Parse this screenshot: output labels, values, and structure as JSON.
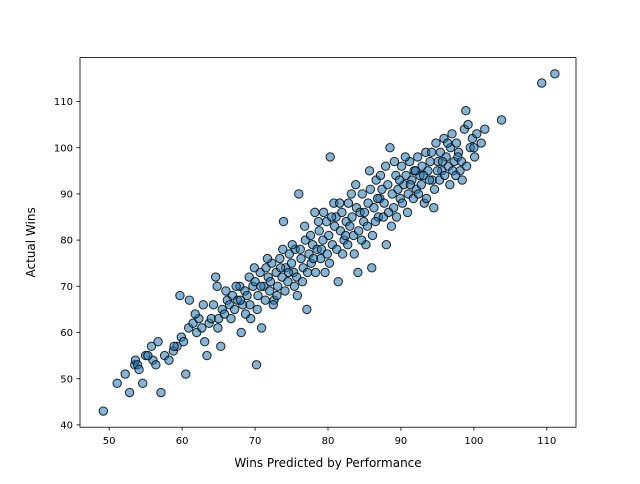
{
  "chart_data": {
    "type": "scatter",
    "title": "",
    "xlabel": "Wins Predicted by Performance",
    "ylabel": "Actual Wins",
    "xlim": [
      46,
      114
    ],
    "ylim": [
      39.5,
      119.5
    ],
    "xticks": [
      50,
      60,
      70,
      80,
      90,
      100,
      110
    ],
    "yticks": [
      40,
      50,
      60,
      70,
      80,
      90,
      100,
      110
    ],
    "grid": false,
    "legend": "none",
    "marker_color": "#1f77b4",
    "marker_edge_color": "#000000",
    "marker_alpha": 0.55,
    "points": [
      [
        49.2,
        43
      ],
      [
        51.1,
        49
      ],
      [
        52.2,
        51
      ],
      [
        52.8,
        47
      ],
      [
        53.5,
        53
      ],
      [
        53.6,
        54
      ],
      [
        53.9,
        53
      ],
      [
        54.1,
        52
      ],
      [
        54.6,
        49
      ],
      [
        55.0,
        55
      ],
      [
        55.8,
        57
      ],
      [
        56.0,
        54
      ],
      [
        56.4,
        53
      ],
      [
        56.7,
        58
      ],
      [
        57.1,
        47
      ],
      [
        57.6,
        55
      ],
      [
        58.2,
        54
      ],
      [
        58.8,
        56
      ],
      [
        59.3,
        57
      ],
      [
        59.7,
        68
      ],
      [
        59.9,
        59
      ],
      [
        60.2,
        58
      ],
      [
        60.5,
        51
      ],
      [
        60.9,
        61
      ],
      [
        61.0,
        67
      ],
      [
        61.5,
        62
      ],
      [
        62.0,
        60
      ],
      [
        62.3,
        63
      ],
      [
        62.9,
        66
      ],
      [
        63.4,
        55
      ],
      [
        63.7,
        62
      ],
      [
        64.0,
        63
      ],
      [
        64.3,
        66
      ],
      [
        64.6,
        72
      ],
      [
        64.8,
        70
      ],
      [
        65.0,
        63
      ],
      [
        65.3,
        57
      ],
      [
        65.5,
        65
      ],
      [
        65.8,
        64
      ],
      [
        66.2,
        67
      ],
      [
        66.5,
        66
      ],
      [
        66.9,
        68
      ],
      [
        67.2,
        65
      ],
      [
        67.6,
        67
      ],
      [
        67.9,
        70
      ],
      [
        68.1,
        60
      ],
      [
        68.3,
        66
      ],
      [
        68.6,
        69
      ],
      [
        68.9,
        68
      ],
      [
        69.2,
        72
      ],
      [
        69.4,
        63
      ],
      [
        69.7,
        70
      ],
      [
        70.0,
        71
      ],
      [
        70.2,
        53
      ],
      [
        70.4,
        68
      ],
      [
        70.7,
        73
      ],
      [
        70.9,
        61
      ],
      [
        71.2,
        70
      ],
      [
        71.5,
        74
      ],
      [
        71.8,
        72
      ],
      [
        72.0,
        69
      ],
      [
        72.3,
        75
      ],
      [
        72.6,
        67
      ],
      [
        72.9,
        73
      ],
      [
        73.1,
        70
      ],
      [
        73.4,
        76
      ],
      [
        73.7,
        72
      ],
      [
        73.9,
        84
      ],
      [
        74.2,
        74
      ],
      [
        74.5,
        71
      ],
      [
        74.7,
        77
      ],
      [
        75.0,
        75
      ],
      [
        75.3,
        73
      ],
      [
        75.5,
        78
      ],
      [
        75.8,
        68
      ],
      [
        76.0,
        90
      ],
      [
        76.3,
        76
      ],
      [
        76.6,
        74
      ],
      [
        76.9,
        80
      ],
      [
        77.1,
        65
      ],
      [
        77.4,
        77
      ],
      [
        77.7,
        75
      ],
      [
        77.9,
        79
      ],
      [
        78.2,
        86
      ],
      [
        78.5,
        78
      ],
      [
        78.8,
        82
      ],
      [
        79.0,
        76
      ],
      [
        79.3,
        80
      ],
      [
        79.6,
        73
      ],
      [
        79.8,
        84
      ],
      [
        80.1,
        81
      ],
      [
        80.3,
        98
      ],
      [
        80.6,
        79
      ],
      [
        80.9,
        83
      ],
      [
        81.1,
        85
      ],
      [
        81.4,
        71
      ],
      [
        81.7,
        82
      ],
      [
        81.9,
        86
      ],
      [
        82.2,
        80
      ],
      [
        82.5,
        84
      ],
      [
        82.8,
        88
      ],
      [
        83.0,
        83
      ],
      [
        83.3,
        85
      ],
      [
        83.6,
        77
      ],
      [
        83.9,
        87
      ],
      [
        84.1,
        73
      ],
      [
        84.4,
        86
      ],
      [
        84.7,
        90
      ],
      [
        84.9,
        84
      ],
      [
        85.2,
        79
      ],
      [
        85.5,
        88
      ],
      [
        85.8,
        91
      ],
      [
        86.0,
        74
      ],
      [
        86.3,
        87
      ],
      [
        86.6,
        93
      ],
      [
        86.9,
        85
      ],
      [
        87.1,
        89
      ],
      [
        87.4,
        91
      ],
      [
        87.7,
        88
      ],
      [
        88.0,
        79
      ],
      [
        88.2,
        92
      ],
      [
        88.5,
        100
      ],
      [
        88.8,
        90
      ],
      [
        89.0,
        87
      ],
      [
        89.3,
        94
      ],
      [
        89.6,
        91
      ],
      [
        89.9,
        89
      ],
      [
        90.1,
        96
      ],
      [
        90.4,
        92
      ],
      [
        90.7,
        94
      ],
      [
        91.0,
        90
      ],
      [
        91.2,
        97
      ],
      [
        91.5,
        93
      ],
      [
        91.8,
        95
      ],
      [
        92.1,
        91
      ],
      [
        92.3,
        98
      ],
      [
        92.6,
        94
      ],
      [
        92.9,
        96
      ],
      [
        93.2,
        88
      ],
      [
        93.4,
        99
      ],
      [
        93.7,
        95
      ],
      [
        94.0,
        97
      ],
      [
        94.3,
        93
      ],
      [
        94.5,
        87
      ],
      [
        94.8,
        101
      ],
      [
        95.1,
        97
      ],
      [
        95.4,
        99
      ],
      [
        95.6,
        95
      ],
      [
        95.9,
        102
      ],
      [
        96.2,
        98
      ],
      [
        96.5,
        96
      ],
      [
        96.8,
        100
      ],
      [
        97.0,
        103
      ],
      [
        97.3,
        97
      ],
      [
        97.6,
        101
      ],
      [
        97.9,
        99
      ],
      [
        98.1,
        95
      ],
      [
        98.4,
        93
      ],
      [
        98.7,
        104
      ],
      [
        98.9,
        108
      ],
      [
        99.2,
        105
      ],
      [
        99.5,
        100
      ],
      [
        99.8,
        102
      ],
      [
        100.1,
        98
      ],
      [
        100.4,
        103
      ],
      [
        101.0,
        101
      ],
      [
        101.5,
        104
      ],
      [
        103.8,
        106
      ],
      [
        109.3,
        114
      ],
      [
        111.1,
        116
      ],
      [
        55.3,
        55
      ],
      [
        58.9,
        57
      ],
      [
        61.8,
        64
      ],
      [
        62.7,
        61
      ],
      [
        63.1,
        58
      ],
      [
        64.9,
        61
      ],
      [
        66.0,
        69
      ],
      [
        66.7,
        63
      ],
      [
        67.4,
        70
      ],
      [
        68.0,
        67
      ],
      [
        68.7,
        64
      ],
      [
        69.3,
        66
      ],
      [
        69.9,
        74
      ],
      [
        70.3,
        65
      ],
      [
        70.8,
        70
      ],
      [
        71.4,
        67
      ],
      [
        71.7,
        76
      ],
      [
        72.1,
        71
      ],
      [
        72.5,
        66
      ],
      [
        73.0,
        68
      ],
      [
        73.5,
        74
      ],
      [
        73.8,
        78
      ],
      [
        74.1,
        69
      ],
      [
        74.6,
        73
      ],
      [
        75.1,
        79
      ],
      [
        75.4,
        70
      ],
      [
        75.7,
        72
      ],
      [
        76.2,
        78
      ],
      [
        76.5,
        71
      ],
      [
        76.8,
        83
      ],
      [
        77.2,
        73
      ],
      [
        77.6,
        81
      ],
      [
        78.0,
        76
      ],
      [
        78.3,
        73
      ],
      [
        78.7,
        84
      ],
      [
        79.1,
        78
      ],
      [
        79.4,
        86
      ],
      [
        79.9,
        77
      ],
      [
        80.2,
        75
      ],
      [
        80.5,
        85
      ],
      [
        80.8,
        88
      ],
      [
        81.2,
        78
      ],
      [
        81.6,
        88
      ],
      [
        82.0,
        77
      ],
      [
        82.4,
        81
      ],
      [
        82.7,
        79
      ],
      [
        83.2,
        90
      ],
      [
        83.5,
        81
      ],
      [
        83.8,
        92
      ],
      [
        84.2,
        82
      ],
      [
        84.6,
        80
      ],
      [
        85.0,
        86
      ],
      [
        85.4,
        83
      ],
      [
        85.7,
        95
      ],
      [
        86.1,
        81
      ],
      [
        86.5,
        84
      ],
      [
        86.8,
        89
      ],
      [
        87.2,
        94
      ],
      [
        87.6,
        85
      ],
      [
        87.9,
        96
      ],
      [
        88.3,
        86
      ],
      [
        88.7,
        83
      ],
      [
        89.1,
        97
      ],
      [
        89.4,
        85
      ],
      [
        89.8,
        93
      ],
      [
        90.2,
        88
      ],
      [
        90.6,
        98
      ],
      [
        90.9,
        86
      ],
      [
        91.3,
        92
      ],
      [
        91.7,
        89
      ],
      [
        92.0,
        95
      ],
      [
        92.4,
        90
      ],
      [
        92.8,
        92
      ],
      [
        93.1,
        94
      ],
      [
        93.5,
        89
      ],
      [
        93.9,
        93
      ],
      [
        94.2,
        99
      ],
      [
        94.6,
        91
      ],
      [
        95.0,
        95
      ],
      [
        95.3,
        93
      ],
      [
        95.7,
        97
      ],
      [
        96.0,
        94
      ],
      [
        96.4,
        101
      ],
      [
        96.7,
        92
      ],
      [
        97.1,
        95
      ],
      [
        97.5,
        94
      ],
      [
        97.8,
        98
      ],
      [
        98.3,
        97
      ],
      [
        99.0,
        96
      ],
      [
        100.0,
        100
      ]
    ]
  }
}
